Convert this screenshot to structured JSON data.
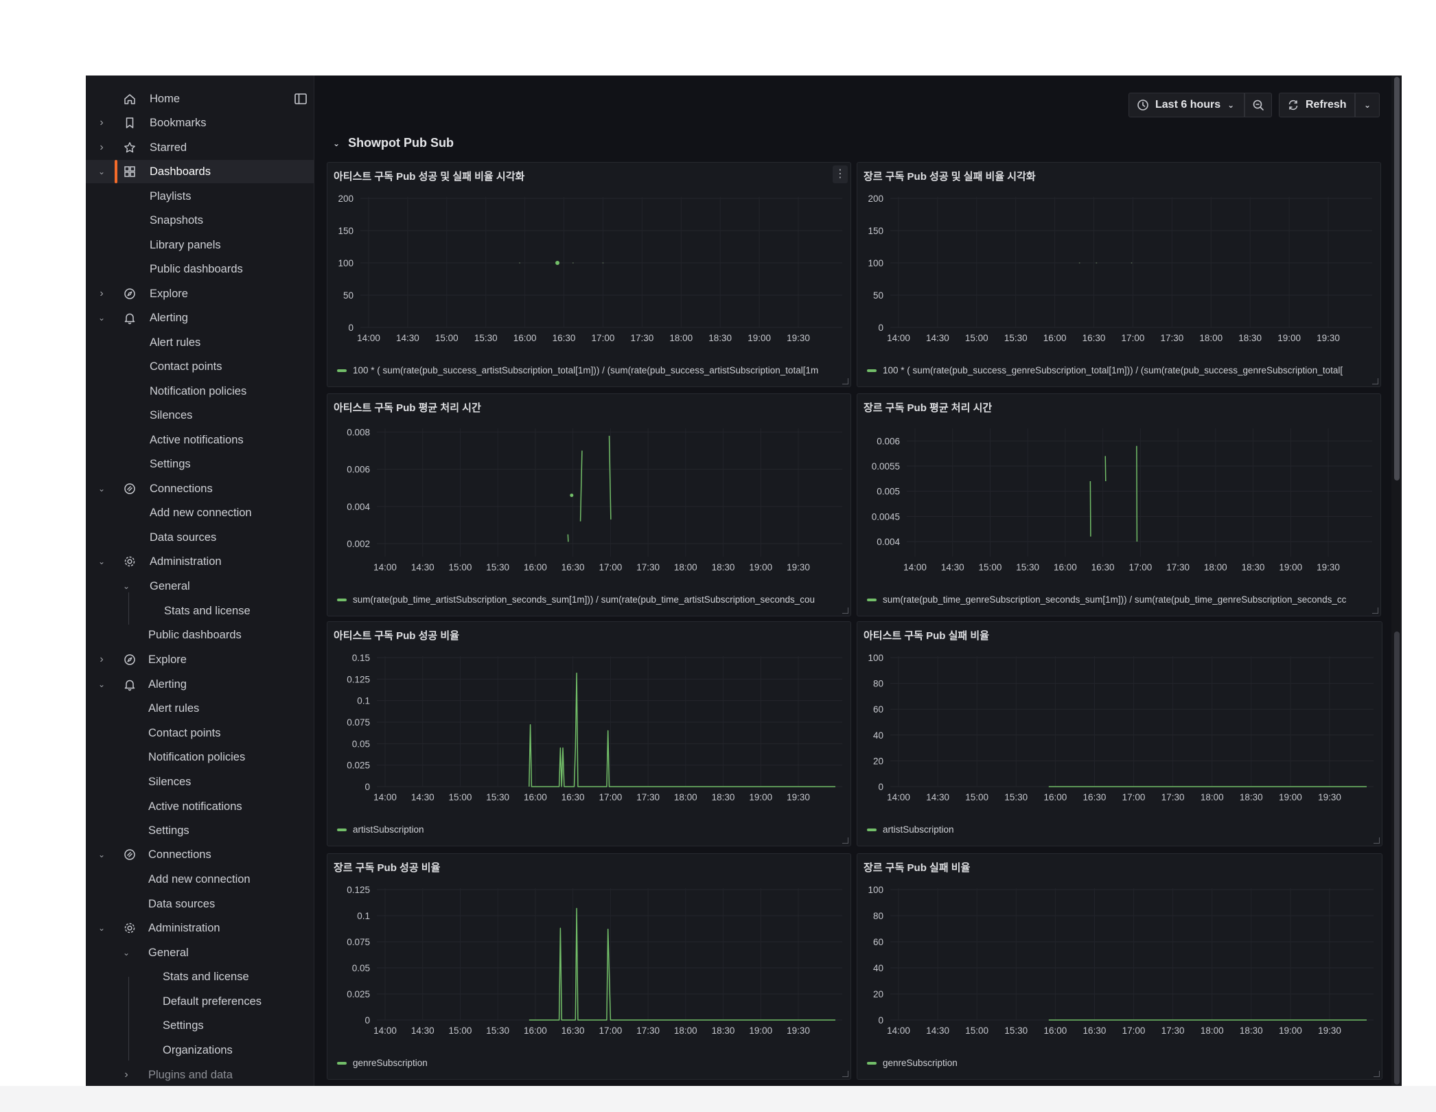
{
  "sidebar": {
    "dock_icon": "dock-panel-icon",
    "items": [
      {
        "key": "home",
        "label": "Home",
        "icon": "home",
        "chev": "",
        "indent": 0,
        "active": false
      },
      {
        "key": "bookmarks",
        "label": "Bookmarks",
        "icon": "bookmark",
        "chev": "right",
        "indent": 0,
        "active": false
      },
      {
        "key": "starred",
        "label": "Starred",
        "icon": "star",
        "chev": "right",
        "indent": 0,
        "active": false
      },
      {
        "key": "dashboards",
        "label": "Dashboards",
        "icon": "apps",
        "chev": "down",
        "indent": 0,
        "active": true
      },
      {
        "key": "playlists",
        "label": "Playlists",
        "icon": "",
        "chev": "",
        "indent": 1,
        "active": false
      },
      {
        "key": "snapshots",
        "label": "Snapshots",
        "icon": "",
        "chev": "",
        "indent": 1,
        "active": false
      },
      {
        "key": "library-panels",
        "label": "Library panels",
        "icon": "",
        "chev": "",
        "indent": 1,
        "active": false
      },
      {
        "key": "public-dashboards",
        "label": "Public dashboards",
        "icon": "",
        "chev": "",
        "indent": 1,
        "active": false
      },
      {
        "key": "explore",
        "label": "Explore",
        "icon": "compass",
        "chev": "right",
        "indent": 0,
        "active": false
      },
      {
        "key": "alerting",
        "label": "Alerting",
        "icon": "bell",
        "chev": "down",
        "indent": 0,
        "active": false
      },
      {
        "key": "alert-rules",
        "label": "Alert rules",
        "icon": "",
        "chev": "",
        "indent": 1,
        "active": false
      },
      {
        "key": "contact-points",
        "label": "Contact points",
        "icon": "",
        "chev": "",
        "indent": 1,
        "active": false
      },
      {
        "key": "notification-policies",
        "label": "Notification policies",
        "icon": "",
        "chev": "",
        "indent": 1,
        "active": false
      },
      {
        "key": "silences",
        "label": "Silences",
        "icon": "",
        "chev": "",
        "indent": 1,
        "active": false
      },
      {
        "key": "active-notifications",
        "label": "Active notifications",
        "icon": "",
        "chev": "",
        "indent": 1,
        "active": false
      },
      {
        "key": "settings",
        "label": "Settings",
        "icon": "",
        "chev": "",
        "indent": 1,
        "active": false
      },
      {
        "key": "connections",
        "label": "Connections",
        "icon": "connections",
        "chev": "down",
        "indent": 0,
        "active": false
      },
      {
        "key": "add-new-connection",
        "label": "Add new connection",
        "icon": "",
        "chev": "",
        "indent": 1,
        "active": false
      },
      {
        "key": "data-sources",
        "label": "Data sources",
        "icon": "",
        "chev": "",
        "indent": 1,
        "active": false
      },
      {
        "key": "administration",
        "label": "Administration",
        "icon": "cog",
        "chev": "down",
        "indent": 0,
        "active": false
      },
      {
        "key": "general",
        "label": "General",
        "icon": "",
        "chev": "down",
        "indent": 1,
        "active": false
      },
      {
        "key": "stats-and-license",
        "label": "Stats and license",
        "icon": "",
        "chev": "",
        "indent": 2,
        "active": false
      },
      {
        "key": "public-dashboards-2",
        "label": "Public dashboards",
        "icon": "",
        "chev": "",
        "indent": 1,
        "active": false
      },
      {
        "key": "explore-2",
        "label": "Explore",
        "icon": "compass",
        "chev": "right",
        "indent": 0,
        "active": false
      },
      {
        "key": "alerting-2",
        "label": "Alerting",
        "icon": "bell",
        "chev": "down",
        "indent": 0,
        "active": false
      },
      {
        "key": "alert-rules-2",
        "label": "Alert rules",
        "icon": "",
        "chev": "",
        "indent": 1,
        "active": false
      },
      {
        "key": "contact-points-2",
        "label": "Contact points",
        "icon": "",
        "chev": "",
        "indent": 1,
        "active": false
      },
      {
        "key": "notification-policies-2",
        "label": "Notification policies",
        "icon": "",
        "chev": "",
        "indent": 1,
        "active": false
      },
      {
        "key": "silences-2",
        "label": "Silences",
        "icon": "",
        "chev": "",
        "indent": 1,
        "active": false
      },
      {
        "key": "active-notifications-2",
        "label": "Active notifications",
        "icon": "",
        "chev": "",
        "indent": 1,
        "active": false
      },
      {
        "key": "settings-2",
        "label": "Settings",
        "icon": "",
        "chev": "",
        "indent": 1,
        "active": false
      },
      {
        "key": "connections-2",
        "label": "Connections",
        "icon": "connections",
        "chev": "down",
        "indent": 0,
        "active": false
      },
      {
        "key": "add-new-connection-2",
        "label": "Add new connection",
        "icon": "",
        "chev": "",
        "indent": 1,
        "active": false
      },
      {
        "key": "data-sources-2",
        "label": "Data sources",
        "icon": "",
        "chev": "",
        "indent": 1,
        "active": false
      },
      {
        "key": "administration-2",
        "label": "Administration",
        "icon": "cog",
        "chev": "down",
        "indent": 0,
        "active": false
      },
      {
        "key": "general-2",
        "label": "General",
        "icon": "",
        "chev": "down",
        "indent": 1,
        "active": false
      },
      {
        "key": "stats-and-license-2",
        "label": "Stats and license",
        "icon": "",
        "chev": "",
        "indent": 2,
        "active": false
      },
      {
        "key": "default-preferences",
        "label": "Default preferences",
        "icon": "",
        "chev": "",
        "indent": 2,
        "active": false
      },
      {
        "key": "settings-3",
        "label": "Settings",
        "icon": "",
        "chev": "",
        "indent": 2,
        "active": false
      },
      {
        "key": "organizations",
        "label": "Organizations",
        "icon": "",
        "chev": "",
        "indent": 2,
        "active": false
      },
      {
        "key": "plugins-and-data",
        "label": "Plugins and data",
        "icon": "",
        "chev": "right",
        "indent": 1,
        "active": false
      }
    ]
  },
  "topbar": {
    "time_range": "Last 6 hours",
    "time_icon": "clock-icon",
    "zoom_icon": "zoom-out-icon",
    "refresh_label": "Refresh",
    "refresh_icon": "refresh-icon"
  },
  "section": {
    "title": "Showpot Pub Sub"
  },
  "colors": {
    "series": "#73bf69",
    "accent": "#f46b2a",
    "background": "#111217",
    "panel": "#181a1f"
  },
  "x_ticks": [
    "14:00",
    "14:30",
    "15:00",
    "15:30",
    "16:00",
    "16:30",
    "17:00",
    "17:30",
    "18:00",
    "18:30",
    "19:00",
    "19:30"
  ],
  "chart_data": [
    {
      "id": "artist-rate",
      "type": "line",
      "title": "아티스트 구독 Pub 성공 및 실패 비율 시각화",
      "ylim": [
        0,
        200
      ],
      "yticks": [
        "0",
        "50",
        "100",
        "150",
        "200"
      ],
      "legend": "100 * ( sum(rate(pub_success_artistSubscription_total[1m])) / (sum(rate(pub_success_artistSubscription_total[1m",
      "series": [
        {
          "name": "100 * ( sum(rate(pub_success_artistSubscription_total[1m])) / (sum(rate(pub_success_artistSubscription_total[1m",
          "points": [
            [
              "15:56",
              100
            ],
            [
              "16:25",
              100
            ],
            [
              "16:37",
              100
            ],
            [
              "17:00",
              100
            ]
          ],
          "style": "dots"
        }
      ],
      "menu": true
    },
    {
      "id": "genre-rate",
      "type": "line",
      "title": "장르 구독 Pub 성공 및 실패 비율 시각화",
      "ylim": [
        0,
        200
      ],
      "yticks": [
        "0",
        "50",
        "100",
        "150",
        "200"
      ],
      "legend": "100 * ( sum(rate(pub_success_genreSubscription_total[1m])) / (sum(rate(pub_success_genreSubscription_total[",
      "series": [
        {
          "name": "100 * ( sum(rate(pub_success_genreSubscription_total[1m])) / (sum(rate(pub_success_genreSubscription_total[",
          "points": [
            [
              "16:19",
              100
            ],
            [
              "16:32",
              100
            ],
            [
              "16:59",
              100
            ]
          ],
          "style": "dots"
        }
      ]
    },
    {
      "id": "artist-time",
      "type": "line",
      "title": "아티스트 구독 Pub 평균 처리 시간",
      "ylim": [
        0.0013,
        0.0082
      ],
      "yticks": [
        "0.002",
        "0.004",
        "0.006",
        "0.008"
      ],
      "legend": "sum(rate(pub_time_artistSubscription_seconds_sum[1m])) / sum(rate(pub_time_artistSubscription_seconds_cou",
      "series": [
        {
          "name": "sum(rate(pub_time_artistSubscription_seconds_sum[1m])) / sum(rate(pub_time_artistSubscription_seconds_cou",
          "segments": [
            [
              [
                "16:26",
                0.0025
              ],
              [
                "16:26",
                0.0021
              ]
            ],
            [
              [
                "16:29",
                0.0046
              ],
              [
                "16:29",
                0.0046
              ]
            ],
            [
              [
                "16:36",
                0.0032
              ],
              [
                "16:37",
                0.007
              ]
            ],
            [
              [
                "16:59",
                0.0078
              ],
              [
                "17:00",
                0.0033
              ]
            ]
          ]
        }
      ]
    },
    {
      "id": "genre-time",
      "type": "line",
      "title": "장르 구독 Pub 평균 처리 시간",
      "ylim": [
        0.0037,
        0.00625
      ],
      "yticks": [
        "0.004",
        "0.0045",
        "0.005",
        "0.0055",
        "0.006"
      ],
      "legend": "sum(rate(pub_time_genreSubscription_seconds_sum[1m])) / sum(rate(pub_time_genreSubscription_seconds_cc",
      "series": [
        {
          "name": "sum(rate(pub_time_genreSubscription_seconds_sum[1m])) / sum(rate(pub_time_genreSubscription_seconds_cc",
          "segments": [
            [
              [
                "16:20",
                0.0052
              ],
              [
                "16:20",
                0.0041
              ]
            ],
            [
              [
                "16:32",
                0.0057
              ],
              [
                "16:32",
                0.0052
              ]
            ],
            [
              [
                "16:57",
                0.0059
              ],
              [
                "16:57",
                0.004
              ]
            ]
          ]
        }
      ]
    },
    {
      "id": "artist-success",
      "type": "line",
      "title": "아티스트 구독 Pub 성공 비율",
      "ylim": [
        0,
        0.15
      ],
      "yticks": [
        "0",
        "0.025",
        "0.05",
        "0.075",
        "0.1",
        "0.125",
        "0.15"
      ],
      "legend": "artistSubscription",
      "series": [
        {
          "name": "artistSubscription",
          "points": [
            [
              "15:55",
              0
            ],
            [
              "15:56",
              0.072
            ],
            [
              "15:57",
              0
            ],
            [
              "16:19",
              0
            ],
            [
              "16:20",
              0.045
            ],
            [
              "16:21",
              0
            ],
            [
              "16:22",
              0.045
            ],
            [
              "16:23",
              0
            ],
            [
              "16:31",
              0
            ],
            [
              "16:32",
              0.045
            ],
            [
              "16:33",
              0.132
            ],
            [
              "16:34",
              0
            ],
            [
              "16:57",
              0
            ],
            [
              "16:58",
              0.065
            ],
            [
              "16:59",
              0
            ],
            [
              "17:05",
              0
            ],
            [
              "17:08",
              0
            ],
            [
              "19:45",
              0
            ]
          ]
        }
      ]
    },
    {
      "id": "artist-fail",
      "type": "line",
      "title": "아티스트 구독 Pub 실패 비율",
      "ylim": [
        0,
        100
      ],
      "yticks": [
        "0",
        "20",
        "40",
        "60",
        "80",
        "100"
      ],
      "legend": "artistSubscription",
      "series": [
        {
          "name": "artistSubscription",
          "points": [
            [
              "15:55",
              0
            ],
            [
              "19:45",
              0
            ]
          ]
        }
      ]
    },
    {
      "id": "genre-success",
      "type": "line",
      "title": "장르 구독 Pub 성공 비율",
      "ylim": [
        0,
        0.125
      ],
      "yticks": [
        "0",
        "0.025",
        "0.05",
        "0.075",
        "0.1",
        "0.125"
      ],
      "legend": "genreSubscription",
      "series": [
        {
          "name": "genreSubscription",
          "points": [
            [
              "15:55",
              0
            ],
            [
              "16:19",
              0
            ],
            [
              "16:20",
              0.088
            ],
            [
              "16:21",
              0
            ],
            [
              "16:32",
              0
            ],
            [
              "16:33",
              0.107
            ],
            [
              "16:34",
              0
            ],
            [
              "16:57",
              0
            ],
            [
              "16:58",
              0.087
            ],
            [
              "16:59",
              0.045
            ],
            [
              "17:00",
              0
            ],
            [
              "17:08",
              0
            ],
            [
              "19:45",
              0
            ]
          ]
        }
      ]
    },
    {
      "id": "genre-fail",
      "type": "line",
      "title": "장르 구독 Pub 실패 비율",
      "ylim": [
        0,
        100
      ],
      "yticks": [
        "0",
        "20",
        "40",
        "60",
        "80",
        "100"
      ],
      "legend": "genreSubscription",
      "series": [
        {
          "name": "genreSubscription",
          "points": [
            [
              "15:55",
              0
            ],
            [
              "19:45",
              0
            ]
          ]
        }
      ]
    }
  ]
}
